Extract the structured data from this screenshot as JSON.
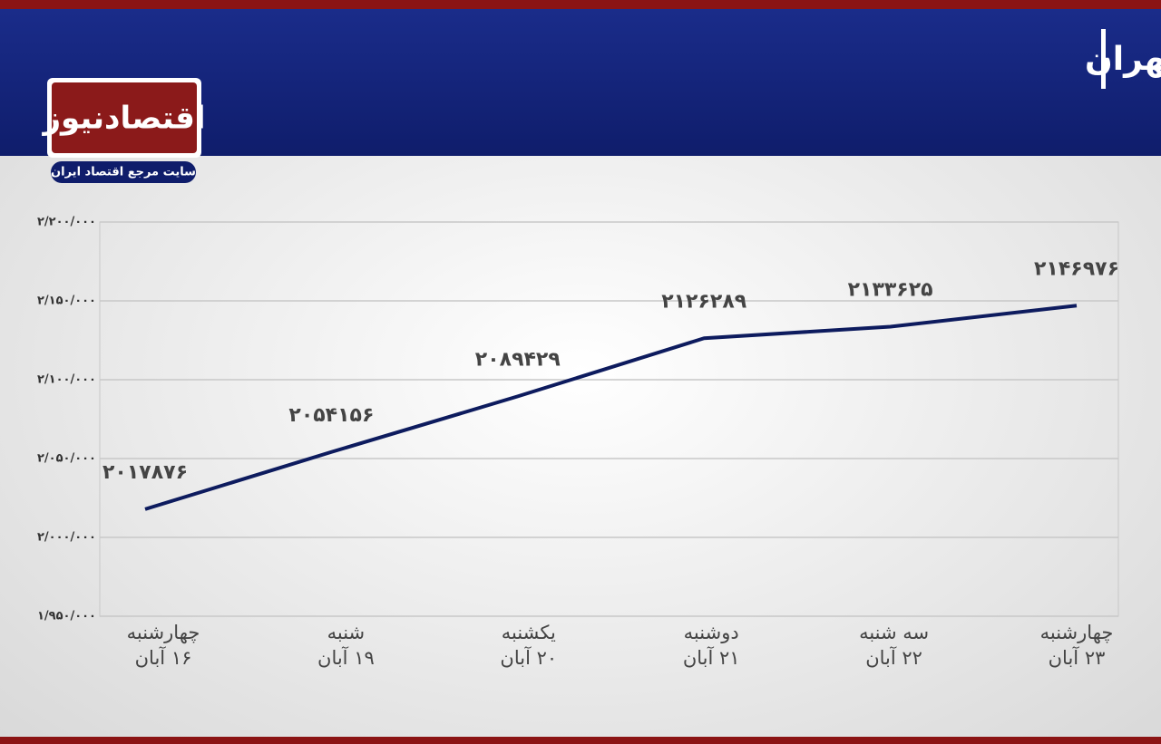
{
  "chart_data": {
    "type": "line",
    "title": "روند تغییرات شاخص کل بورس تهران",
    "categories": [
      "چهارشنبه\n۱۶ آبان",
      "شنبه\n۱۹ آبان",
      "یکشنبه\n۲۰ آبان",
      "دوشنبه\n۲۱ آبان",
      "سه شنبه\n۲۲ آبان",
      "چهارشنبه\n۲۳ آبان"
    ],
    "values": [
      2017876,
      2054156,
      2089429,
      2126289,
      2133625,
      2146976
    ],
    "value_labels": [
      "۲۰۱۷۸۷۶",
      "۲۰۵۴۱۵۶",
      "۲۰۸۹۴۲۹",
      "۲۱۲۶۲۸۹",
      "۲۱۳۳۶۲۵",
      "۲۱۴۶۹۷۶"
    ],
    "color": "#0d1b5e",
    "ylim": [
      1950000,
      2200000
    ],
    "yticks": [
      {
        "value": 1950000,
        "label": "۱/۹۵۰/۰۰۰"
      },
      {
        "value": 2000000,
        "label": "۲/۰۰۰/۰۰۰"
      },
      {
        "value": 2050000,
        "label": "۲/۰۵۰/۰۰۰"
      },
      {
        "value": 2100000,
        "label": "۲/۱۰۰/۰۰۰"
      },
      {
        "value": 2150000,
        "label": "۲/۱۵۰/۰۰۰"
      },
      {
        "value": 2200000,
        "label": "۲/۲۰۰/۰۰۰"
      }
    ],
    "grid": true
  },
  "logo": {
    "name": "اقتصادنیوز",
    "tagline": "سایت مرجع اقتصاد ایران"
  }
}
